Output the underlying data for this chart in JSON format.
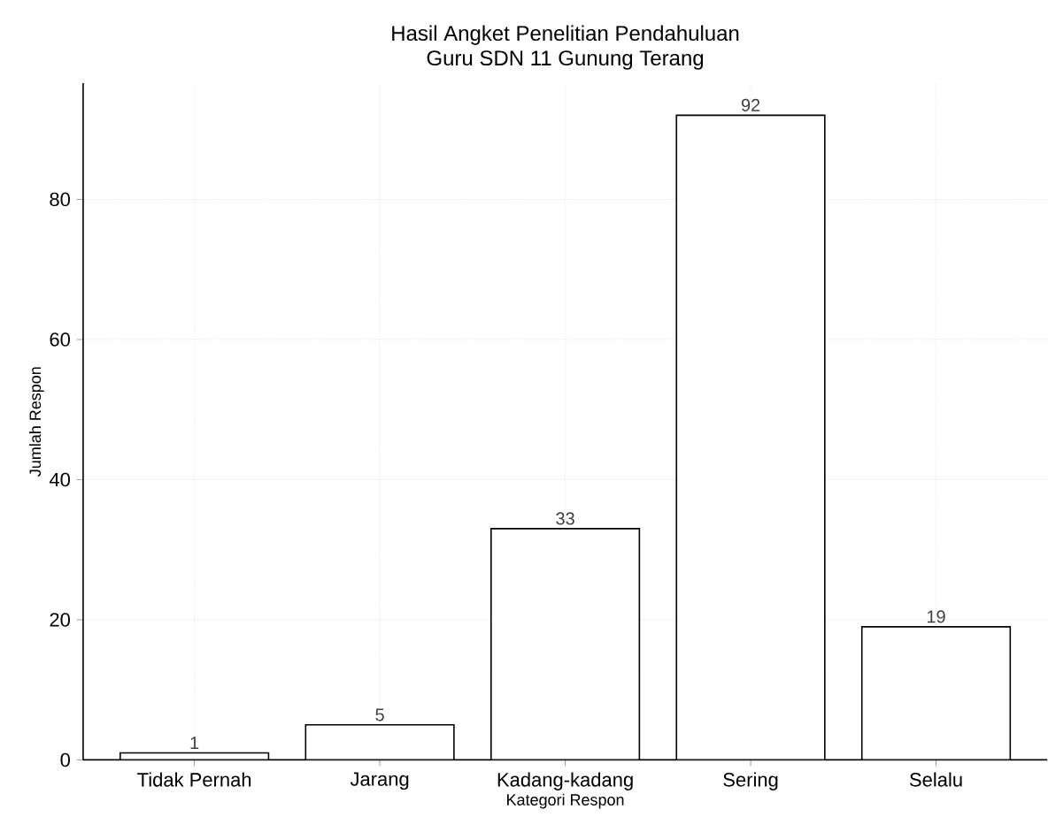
{
  "chart_data": {
    "type": "bar",
    "title": "Hasil Angket Penelitian Pendahuluan",
    "subtitle": "Guru SDN 11 Gunung Terang",
    "xlabel": "Kategori Respon",
    "ylabel": "Jumlah Respon",
    "categories": [
      "Tidak Pernah",
      "Jarang",
      "Kadang-kadang",
      "Sering",
      "Selalu"
    ],
    "values": [
      1,
      5,
      33,
      92,
      19
    ],
    "color": "#ffffff",
    "ylim": [
      0,
      96.6
    ],
    "yticks": [
      0,
      20,
      40,
      60,
      80
    ],
    "grid": true,
    "data_labels": true
  }
}
